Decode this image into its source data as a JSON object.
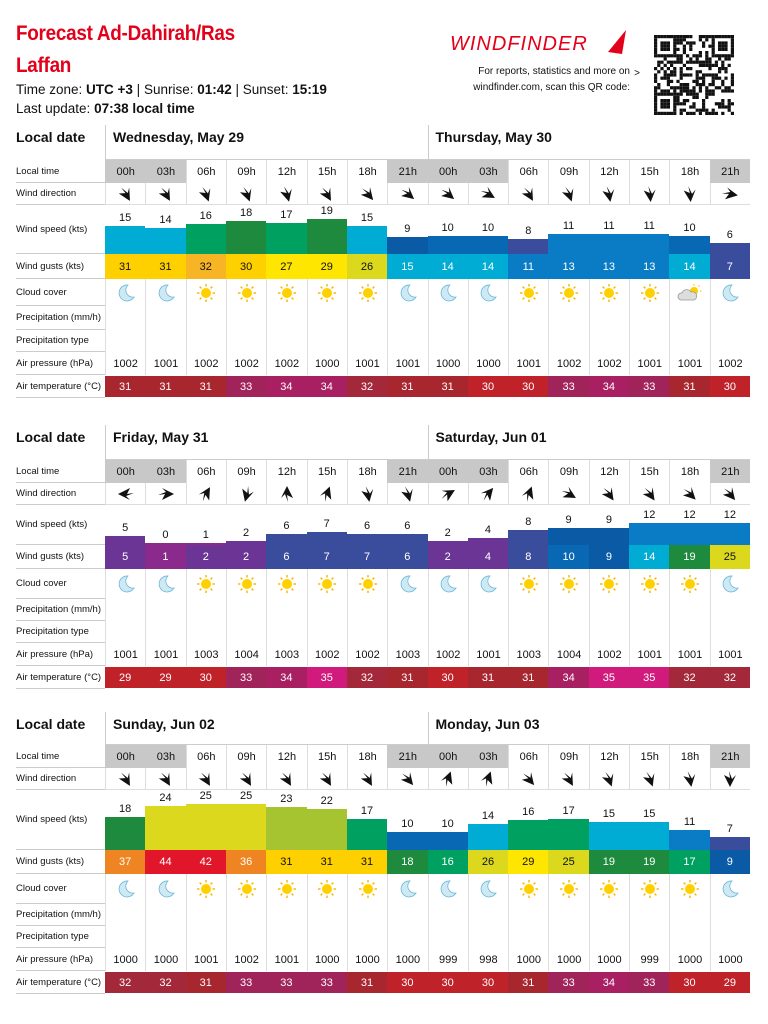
{
  "header": {
    "title": "Forecast Ad-Dahirah/Ras Laffan",
    "tz_label": "Time zone: ",
    "tz_value": "UTC +3",
    "sunrise_label": "Sunrise: ",
    "sunrise_value": "01:42",
    "sunset_label": "Sunset: ",
    "sunset_value": "15:19",
    "sep": " | ",
    "update_label": "Last update: ",
    "update_value": "07:38 local time",
    "brand": "WINDFINDER",
    "promo": "For reports, statistics and more on windfinder.com, scan this QR code:",
    "promo_arrow": ">",
    "brand_color": "#e2001a"
  },
  "row_labels": {
    "date": "Local date",
    "time": "Local time",
    "dir": "Wind direction",
    "speed": "Wind speed (kts)",
    "gusts": "Wind gusts (kts)",
    "cloud": "Cloud cover",
    "precip": "Precipitation (mm/h)",
    "ptype": "Precipitation type",
    "pressure": "Air pressure (hPa)",
    "temp": "Air temperature (°C)"
  },
  "forecast": [
    {
      "days": [
        "Wednesday, May 29",
        "Thursday, May 30"
      ],
      "times": [
        "00h",
        "03h",
        "06h",
        "09h",
        "12h",
        "15h",
        "18h",
        "21h",
        "00h",
        "03h",
        "06h",
        "09h",
        "12h",
        "15h",
        "18h",
        "21h"
      ],
      "wind_dir_deg": [
        330,
        330,
        340,
        340,
        345,
        330,
        320,
        310,
        310,
        300,
        330,
        340,
        350,
        355,
        355,
        280
      ],
      "wind_speed": [
        15,
        14,
        16,
        18,
        17,
        19,
        15,
        9,
        10,
        10,
        8,
        11,
        11,
        11,
        10,
        6
      ],
      "wind_gusts": [
        31,
        31,
        32,
        30,
        27,
        29,
        26,
        15,
        14,
        14,
        11,
        13,
        13,
        13,
        14,
        7
      ],
      "cloud": [
        "moon",
        "moon",
        "sun",
        "sun",
        "sun",
        "sun",
        "sun",
        "moon",
        "moon",
        "moon",
        "sun",
        "sun",
        "sun",
        "sun",
        "partly-cloudy",
        "moon"
      ],
      "pressure": [
        "1002",
        "1001",
        "1002",
        "1002",
        "1002",
        "1000",
        "1001",
        "1001",
        "1000",
        "1000",
        "1001",
        "1002",
        "1002",
        "1001",
        "1001",
        "1002"
      ],
      "temperature": [
        31,
        31,
        31,
        33,
        34,
        34,
        32,
        31,
        31,
        30,
        30,
        33,
        34,
        33,
        31,
        30
      ]
    },
    {
      "days": [
        "Friday, May 31",
        "Saturday, Jun 01"
      ],
      "times": [
        "00h",
        "03h",
        "06h",
        "09h",
        "12h",
        "15h",
        "18h",
        "21h",
        "00h",
        "03h",
        "06h",
        "09h",
        "12h",
        "15h",
        "18h",
        "21h"
      ],
      "wind_dir_deg": [
        90,
        270,
        210,
        15,
        180,
        200,
        350,
        345,
        240,
        220,
        200,
        300,
        325,
        325,
        315,
        320
      ],
      "wind_speed": [
        5,
        0,
        1,
        2,
        6,
        7,
        6,
        6,
        2,
        4,
        8,
        9,
        9,
        12,
        12,
        12
      ],
      "wind_gusts": [
        5,
        1,
        2,
        2,
        6,
        7,
        7,
        6,
        2,
        4,
        8,
        10,
        9,
        14,
        19,
        25
      ],
      "cloud": [
        "moon",
        "moon",
        "sun",
        "sun",
        "sun",
        "sun",
        "sun",
        "moon",
        "moon",
        "moon",
        "sun",
        "sun",
        "sun",
        "sun",
        "sun",
        "moon"
      ],
      "pressure": [
        "1001",
        "1001",
        "1003",
        "1004",
        "1003",
        "1002",
        "1002",
        "1003",
        "1002",
        "1001",
        "1003",
        "1004",
        "1002",
        "1001",
        "1001",
        "1001"
      ],
      "temperature": [
        29,
        29,
        30,
        33,
        34,
        35,
        32,
        31,
        30,
        31,
        31,
        34,
        35,
        35,
        32,
        32
      ]
    },
    {
      "days": [
        "Sunday, Jun 02",
        "Monday, Jun 03"
      ],
      "times": [
        "00h",
        "03h",
        "06h",
        "09h",
        "12h",
        "15h",
        "18h",
        "21h",
        "00h",
        "03h",
        "06h",
        "09h",
        "12h",
        "15h",
        "18h",
        "21h"
      ],
      "wind_dir_deg": [
        330,
        330,
        330,
        330,
        330,
        330,
        330,
        320,
        200,
        200,
        320,
        330,
        340,
        340,
        350,
        0
      ],
      "wind_speed": [
        18,
        24,
        25,
        25,
        23,
        22,
        17,
        10,
        10,
        14,
        16,
        17,
        15,
        15,
        11,
        7
      ],
      "wind_gusts": [
        37,
        44,
        42,
        36,
        31,
        31,
        31,
        18,
        16,
        26,
        29,
        25,
        19,
        19,
        17,
        9
      ],
      "cloud": [
        "moon",
        "moon",
        "sun",
        "sun",
        "sun",
        "sun",
        "sun",
        "moon",
        "moon",
        "moon",
        "sun",
        "sun",
        "sun",
        "sun",
        "sun",
        "moon"
      ],
      "pressure": [
        "1000",
        "1000",
        "1001",
        "1002",
        "1001",
        "1000",
        "1000",
        "1000",
        "999",
        "998",
        "1000",
        "1000",
        "1000",
        "999",
        "1000",
        "1000"
      ],
      "temperature": [
        32,
        32,
        31,
        33,
        33,
        33,
        31,
        30,
        30,
        30,
        31,
        33,
        34,
        33,
        30,
        29
      ]
    }
  ]
}
